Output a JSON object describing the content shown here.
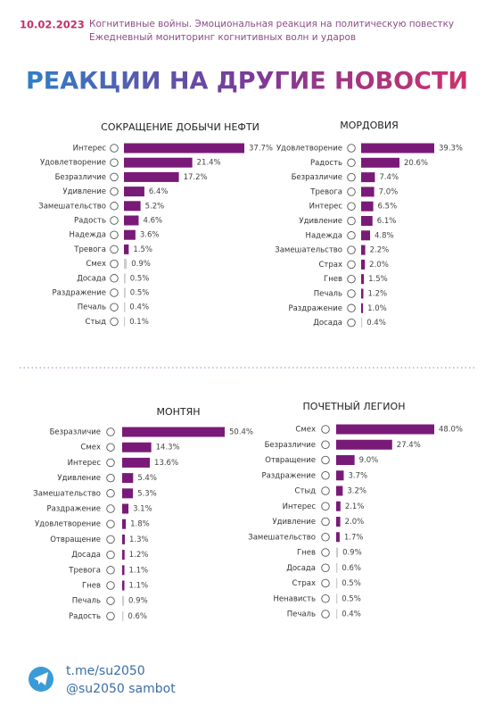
{
  "header": {
    "date": "10.02.2023",
    "lines": [
      "Когнитивные войны. Эмоциональная реакция на политическую повестку",
      "Ежедневный мониторинг когнитивных волн и ударов"
    ]
  },
  "title": "РЕАКЦИИ НА ДРУГИЕ НОВОСТИ",
  "chart_data": [
    {
      "type": "bar",
      "orientation": "horizontal",
      "title": "СОКРАЩЕНИЕ ДОБЫЧИ НЕФТИ",
      "categories": [
        "Интерес",
        "Удовлетворение",
        "Безразличие",
        "Удивление",
        "Замешательство",
        "Радость",
        "Надежда",
        "Тревога",
        "Смех",
        "Досада",
        "Раздражение",
        "Печаль",
        "Стыд"
      ],
      "values": [
        37.7,
        21.4,
        17.2,
        6.4,
        5.2,
        4.6,
        3.6,
        1.5,
        0.9,
        0.5,
        0.5,
        0.4,
        0.1
      ],
      "value_labels": [
        "37.7%",
        "21.4%",
        "17.2%",
        "6.4%",
        "5.2%",
        "4.6%",
        "3.6%",
        "1.5%",
        "0.9%",
        "0.5%",
        "0.5%",
        "0.4%",
        "0.1%"
      ],
      "colors": [
        "#7a1a78",
        "#7a1a78",
        "#7a1a78",
        "#7a1a78",
        "#7a1a78",
        "#7a1a78",
        "#7a1a78",
        "#7a1a78",
        "#cccccc",
        "#cccccc",
        "#cccccc",
        "#cccccc",
        "#cccccc"
      ]
    },
    {
      "type": "bar",
      "orientation": "horizontal",
      "title": "МОРДОВИЯ",
      "categories": [
        "Удовлетворение",
        "Радость",
        "Безразличие",
        "Тревога",
        "Интерес",
        "Удивление",
        "Надежда",
        "Замешательство",
        "Страх",
        "Гнев",
        "Печаль",
        "Раздражение",
        "Досада"
      ],
      "values": [
        39.3,
        20.6,
        7.4,
        7.0,
        6.5,
        6.1,
        4.8,
        2.2,
        2.0,
        1.5,
        1.2,
        1.0,
        0.4
      ],
      "value_labels": [
        "39.3%",
        "20.6%",
        "7.4%",
        "7.0%",
        "6.5%",
        "6.1%",
        "4.8%",
        "2.2%",
        "2.0%",
        "1.5%",
        "1.2%",
        "1.0%",
        "0.4%"
      ],
      "colors": [
        "#7a1a78",
        "#7a1a78",
        "#7a1a78",
        "#7a1a78",
        "#7a1a78",
        "#7a1a78",
        "#7a1a78",
        "#7a1a78",
        "#7a1a78",
        "#7a1a78",
        "#7a1a78",
        "#7a1a78",
        "#cccccc"
      ]
    },
    {
      "type": "bar",
      "orientation": "horizontal",
      "title": "МОНТЯН",
      "categories": [
        "Безразличие",
        "Смех",
        "Интерес",
        "Удивление",
        "Замешательство",
        "Раздражение",
        "Удовлетворение",
        "Отвращение",
        "Досада",
        "Тревога",
        "Гнев",
        "Печаль",
        "Радость"
      ],
      "values": [
        50.4,
        14.3,
        13.6,
        5.4,
        5.3,
        3.1,
        1.8,
        1.3,
        1.2,
        1.1,
        1.1,
        0.9,
        0.6
      ],
      "value_labels": [
        "50.4%",
        "14.3%",
        "13.6%",
        "5.4%",
        "5.3%",
        "3.1%",
        "1.8%",
        "1.3%",
        "1.2%",
        "1.1%",
        "1.1%",
        "0.9%",
        "0.6%"
      ],
      "colors": [
        "#7a1a78",
        "#7a1a78",
        "#7a1a78",
        "#7a1a78",
        "#7a1a78",
        "#7a1a78",
        "#7a1a78",
        "#7a1a78",
        "#7a1a78",
        "#7a1a78",
        "#7a1a78",
        "#cccccc",
        "#cccccc"
      ]
    },
    {
      "type": "bar",
      "orientation": "horizontal",
      "title": "ПОЧЕТНЫЙ ЛЕГИОН",
      "categories": [
        "Смех",
        "Безразличие",
        "Отвращение",
        "Раздражение",
        "Стыд",
        "Интерес",
        "Удивление",
        "Замешательство",
        "Гнев",
        "Досада",
        "Страх",
        "Ненависть",
        "Печаль"
      ],
      "values": [
        48.0,
        27.4,
        9.0,
        3.7,
        3.2,
        2.1,
        2.0,
        1.7,
        0.9,
        0.6,
        0.5,
        0.5,
        0.4
      ],
      "value_labels": [
        "48.0%",
        "27.4%",
        "9.0%",
        "3.7%",
        "3.2%",
        "2.1%",
        "2.0%",
        "1.7%",
        "0.9%",
        "0.6%",
        "0.5%",
        "0.5%",
        "0.4%"
      ],
      "colors": [
        "#7a1a78",
        "#7a1a78",
        "#7a1a78",
        "#7a1a78",
        "#7a1a78",
        "#7a1a78",
        "#7a1a78",
        "#7a1a78",
        "#cccccc",
        "#cccccc",
        "#cccccc",
        "#cccccc",
        "#cccccc"
      ]
    }
  ],
  "footer": {
    "links": [
      "t.me/su2050",
      "@su2050 sambot"
    ]
  }
}
